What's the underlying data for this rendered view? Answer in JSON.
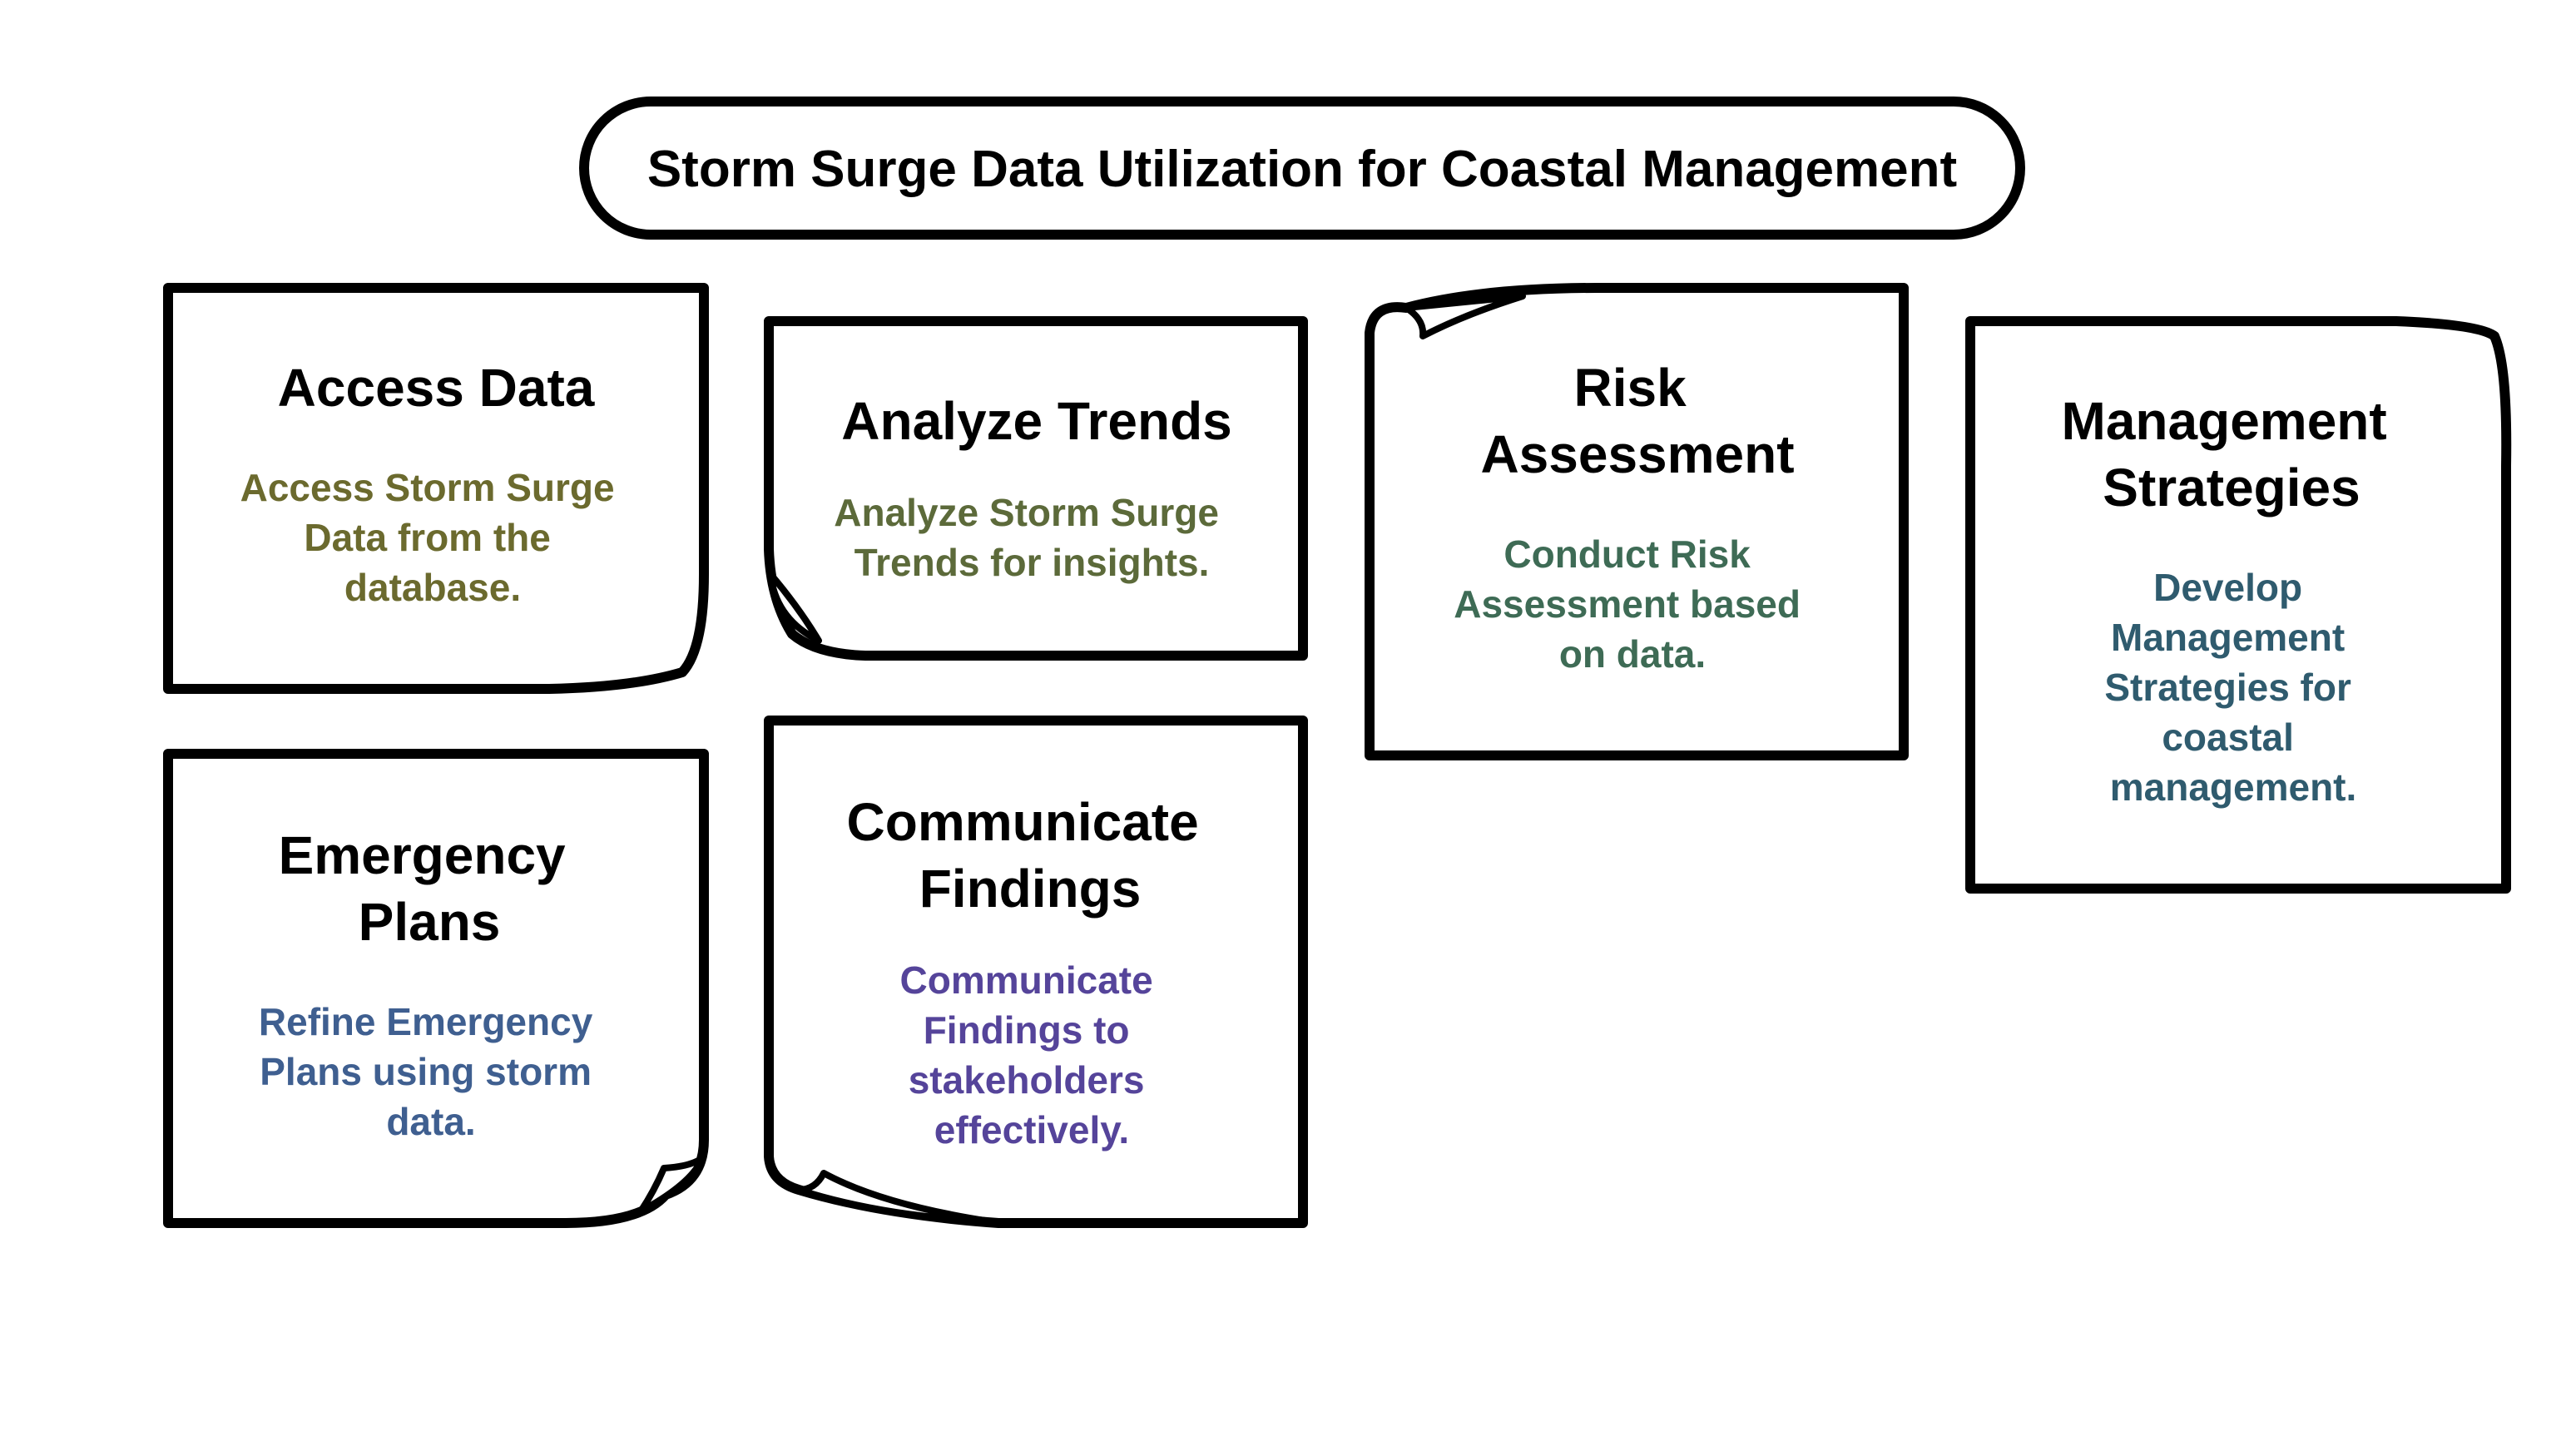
{
  "title": "Storm Surge Data Utilization for Coastal Management",
  "cards": [
    {
      "heading": [
        "Access Data"
      ],
      "description": [
        "Access Storm Surge",
        "Data from the",
        "database."
      ],
      "color": "#6b6a2e"
    },
    {
      "heading": [
        "Analyze Trends"
      ],
      "description": [
        "Analyze Storm Surge",
        "Trends for insights."
      ],
      "color": "#5c6a3a"
    },
    {
      "heading": [
        "Risk",
        "Assessment"
      ],
      "description": [
        "Conduct Risk",
        "Assessment based",
        "on data."
      ],
      "color": "#3e6b55"
    },
    {
      "heading": [
        "Management",
        "Strategies"
      ],
      "description": [
        "Develop",
        "Management",
        "Strategies for",
        "coastal",
        "management."
      ],
      "color": "#2f5b6e"
    },
    {
      "heading": [
        "Emergency",
        "Plans"
      ],
      "description": [
        "Refine Emergency",
        "Plans using storm",
        "data."
      ],
      "color": "#3f5f90"
    },
    {
      "heading": [
        "Communicate",
        "Findings"
      ],
      "description": [
        "Communicate",
        "Findings to",
        "stakeholders",
        "effectively."
      ],
      "color": "#55449a"
    }
  ]
}
